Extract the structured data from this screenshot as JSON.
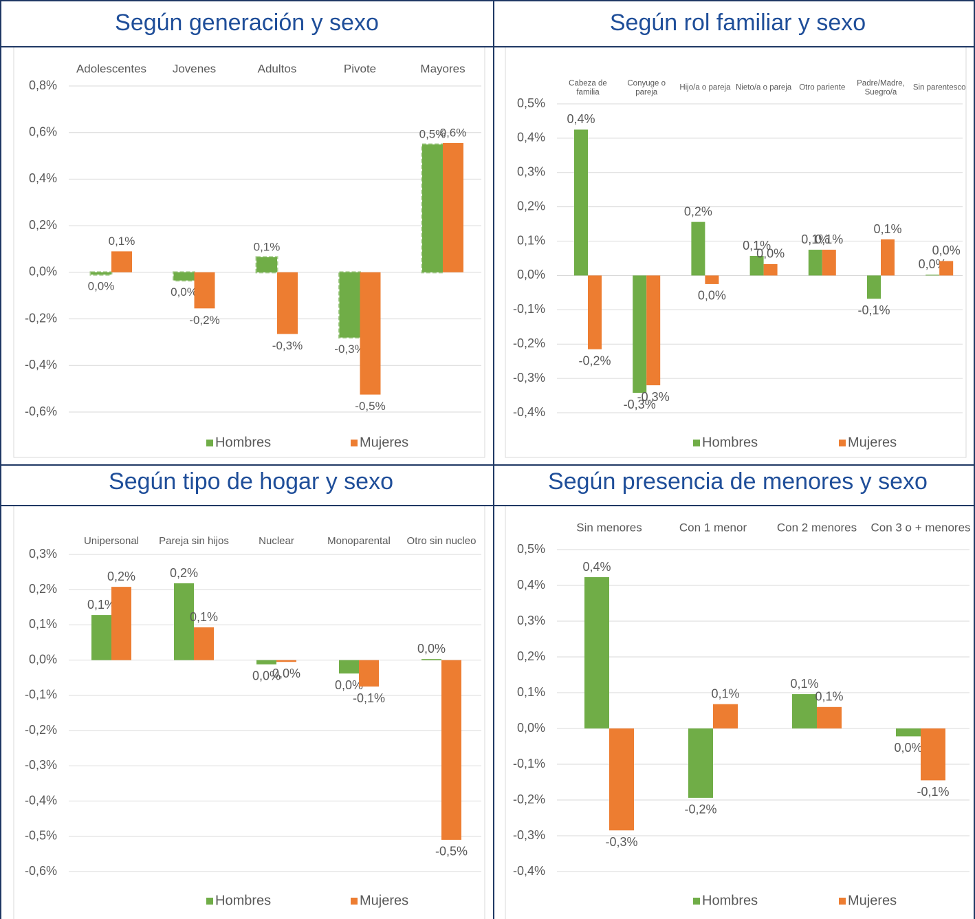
{
  "chart_data": [
    {
      "type": "bar",
      "title": "Según generación y sexo",
      "categories": [
        "Adolescentes",
        "Jovenes",
        "Adultos",
        "Pivote",
        "Mayores"
      ],
      "series": [
        {
          "name": "Hombres",
          "color": "#70ad47",
          "border": "dashed",
          "values": [
            -0.01,
            -0.035,
            0.065,
            -0.28,
            0.549
          ],
          "value_labels": [
            "0,0%",
            "0,0%",
            "0,1%",
            "-0,3%",
            "0,5%"
          ]
        },
        {
          "name": "Mujeres",
          "color": "#ed7d31",
          "values": [
            0.09,
            -0.155,
            -0.265,
            -0.525,
            0.555
          ],
          "value_labels": [
            "0,1%",
            "-0,2%",
            "-0,3%",
            "-0,5%",
            "0,6%"
          ]
        }
      ],
      "ylim": [
        -0.6,
        0.8
      ],
      "yticks": [
        {
          "value": 0.8,
          "label": "0,8%"
        },
        {
          "value": 0.6,
          "label": "0,6%"
        },
        {
          "value": 0.4,
          "label": "0,4%"
        },
        {
          "value": 0.2,
          "label": "0,2%"
        },
        {
          "value": 0,
          "label": "0,0%"
        },
        {
          "value": -0.2,
          "label": "-0,2%"
        },
        {
          "value": -0.4,
          "label": "-0,4%"
        },
        {
          "value": -0.6,
          "label": "-0,6%"
        }
      ],
      "grid": true,
      "legend": "bottom"
    },
    {
      "type": "bar",
      "title": "Según rol familiar y sexo",
      "categories": [
        "Cabeza de familia",
        "Conyuge o pareja",
        "Hijo/a o pareja",
        "Nieto/a o pareja",
        "Otro pariente",
        "Padre/Madre, Suegro/a",
        "Sin parentesco"
      ],
      "series": [
        {
          "name": "Hombres",
          "color": "#70ad47",
          "values": [
            0.425,
            -0.342,
            0.156,
            0.057,
            0.075,
            -0.068,
            0.002
          ],
          "value_labels": [
            "0,4%",
            "-0,3%",
            "0,2%",
            "0,1%",
            "0,1%",
            "-0,1%",
            "0,0%"
          ]
        },
        {
          "name": "Mujeres",
          "color": "#ed7d31",
          "values": [
            -0.215,
            -0.32,
            -0.025,
            0.033,
            0.075,
            0.105,
            0.042
          ],
          "value_labels": [
            "-0,2%",
            "-0,3%",
            "0,0%",
            "0,0%",
            "0,1%",
            "0,1%",
            "0,0%"
          ]
        }
      ],
      "ylim": [
        -0.4,
        0.5
      ],
      "yticks": [
        {
          "value": 0.5,
          "label": "0,5%"
        },
        {
          "value": 0.4,
          "label": "0,4%"
        },
        {
          "value": 0.3,
          "label": "0,3%"
        },
        {
          "value": 0.2,
          "label": "0,2%"
        },
        {
          "value": 0.1,
          "label": "0,1%"
        },
        {
          "value": 0,
          "label": "0,0%"
        },
        {
          "value": -0.1,
          "label": "-0,1%"
        },
        {
          "value": -0.2,
          "label": "-0,2%"
        },
        {
          "value": -0.3,
          "label": "-0,3%"
        },
        {
          "value": -0.4,
          "label": "-0,4%"
        }
      ],
      "grid": true,
      "legend": "bottom"
    },
    {
      "type": "bar",
      "title": "Según tipo de hogar y sexo",
      "categories": [
        "Unipersonal",
        "Pareja sin hijos",
        "Nuclear",
        "Monoparental",
        "Otro sin nucleo"
      ],
      "series": [
        {
          "name": "Hombres",
          "color": "#70ad47",
          "values": [
            0.128,
            0.218,
            -0.012,
            -0.038,
            0.003
          ],
          "value_labels": [
            "0,1%",
            "0,2%",
            "0,0%",
            "0,0%",
            "0,0%"
          ]
        },
        {
          "name": "Mujeres",
          "color": "#ed7d31",
          "values": [
            0.208,
            0.093,
            -0.005,
            -0.075,
            -0.51
          ],
          "value_labels": [
            "0,2%",
            "0,1%",
            "0,0%",
            "-0,1%",
            "-0,5%"
          ]
        }
      ],
      "ylim": [
        -0.6,
        0.3
      ],
      "yticks": [
        {
          "value": 0.3,
          "label": "0,3%"
        },
        {
          "value": 0.2,
          "label": "0,2%"
        },
        {
          "value": 0.1,
          "label": "0,1%"
        },
        {
          "value": 0,
          "label": "0,0%"
        },
        {
          "value": -0.1,
          "label": "-0,1%"
        },
        {
          "value": -0.2,
          "label": "-0,2%"
        },
        {
          "value": -0.3,
          "label": "-0,3%"
        },
        {
          "value": -0.4,
          "label": "-0,4%"
        },
        {
          "value": -0.5,
          "label": "-0,5%"
        },
        {
          "value": -0.6,
          "label": "-0,6%"
        }
      ],
      "grid": true,
      "legend": "bottom"
    },
    {
      "type": "bar",
      "title": "Según presencia de menores y sexo",
      "categories": [
        "Sin menores",
        "Con 1 menor",
        "Con 2 menores",
        "Con 3 o + menores"
      ],
      "series": [
        {
          "name": "Hombres",
          "color": "#70ad47",
          "values": [
            0.423,
            -0.194,
            0.096,
            -0.022
          ],
          "value_labels": [
            "0,4%",
            "-0,2%",
            "0,1%",
            "0,0%"
          ]
        },
        {
          "name": "Mujeres",
          "color": "#ed7d31",
          "values": [
            -0.285,
            0.068,
            0.06,
            -0.145
          ],
          "value_labels": [
            "-0,3%",
            "0,1%",
            "0,1%",
            "-0,1%"
          ]
        }
      ],
      "ylim": [
        -0.4,
        0.5
      ],
      "yticks": [
        {
          "value": 0.5,
          "label": "0,5%"
        },
        {
          "value": 0.4,
          "label": "0,4%"
        },
        {
          "value": 0.3,
          "label": "0,3%"
        },
        {
          "value": 0.2,
          "label": "0,2%"
        },
        {
          "value": 0.1,
          "label": "0,1%"
        },
        {
          "value": 0,
          "label": "0,0%"
        },
        {
          "value": -0.1,
          "label": "-0,1%"
        },
        {
          "value": -0.2,
          "label": "-0,2%"
        },
        {
          "value": -0.3,
          "label": "-0,3%"
        },
        {
          "value": -0.4,
          "label": "-0,4%"
        }
      ],
      "grid": true,
      "legend": "bottom"
    }
  ]
}
